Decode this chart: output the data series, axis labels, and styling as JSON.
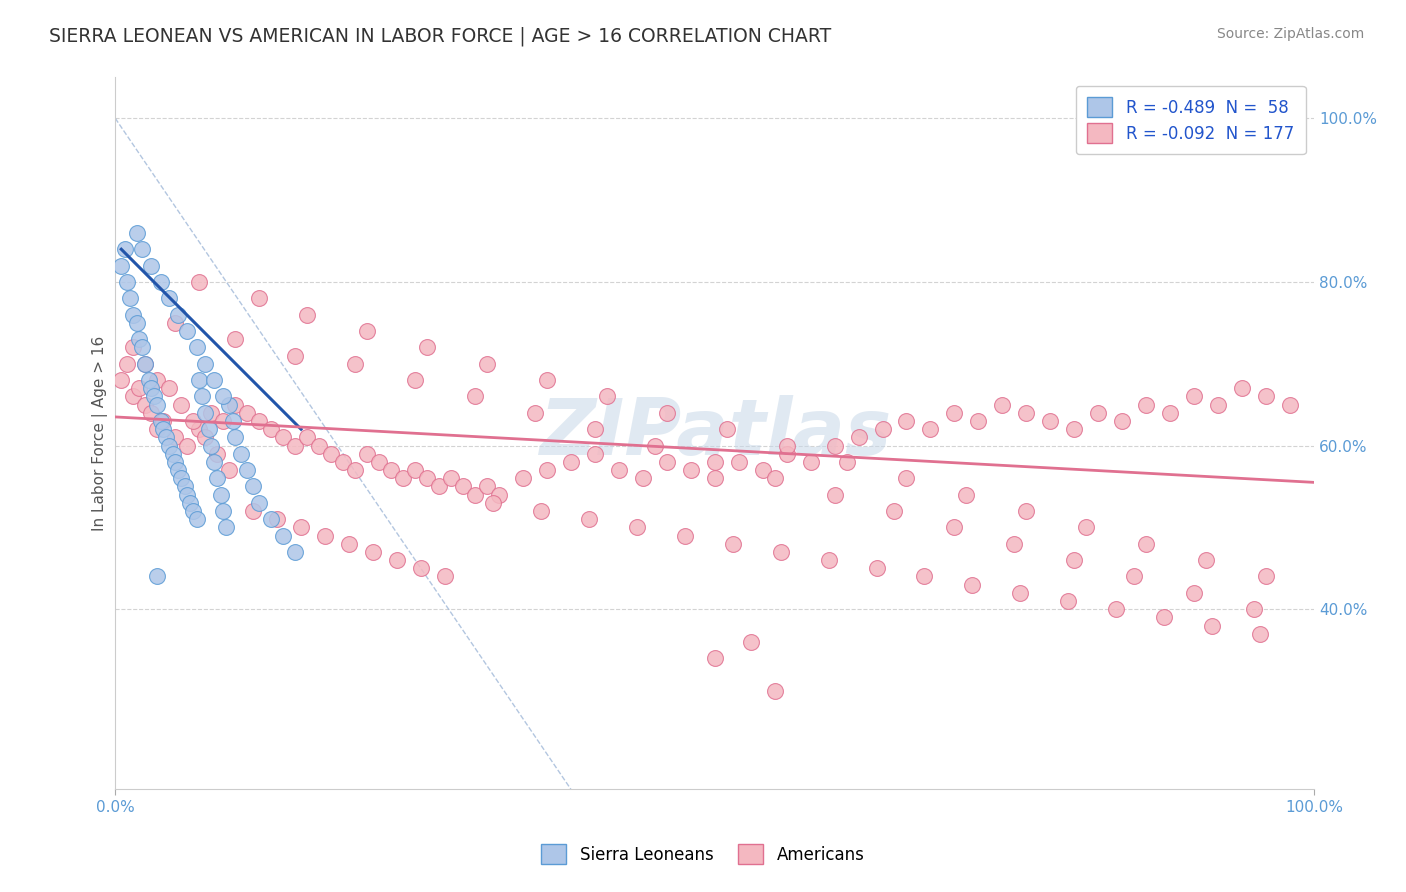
{
  "title": "SIERRA LEONEAN VS AMERICAN IN LABOR FORCE | AGE > 16 CORRELATION CHART",
  "source": "Source: ZipAtlas.com",
  "ylabel": "In Labor Force | Age > 16",
  "xlim": [
    0.0,
    1.0
  ],
  "ylim": [
    0.18,
    1.05
  ],
  "xticks": [
    0.0,
    1.0
  ],
  "yticks": [
    0.4,
    0.6,
    0.8,
    1.0
  ],
  "xtick_labels": [
    "0.0%",
    "100.0%"
  ],
  "ytick_labels": [
    "40.0%",
    "60.0%",
    "80.0%",
    "100.0%"
  ],
  "blue_scatter_color": "#aec6e8",
  "blue_scatter_edge": "#5b9bd5",
  "pink_scatter_color": "#f4b8c1",
  "pink_scatter_edge": "#e07090",
  "blue_line_color": "#2255aa",
  "pink_line_color": "#e07090",
  "diag_line_color": "#a0b8d8",
  "background_color": "#ffffff",
  "grid_color": "#c8c8c8",
  "tick_color": "#5b9bd5",
  "title_color": "#333333",
  "source_color": "#888888",
  "watermark": "ZIPatlas",
  "watermark_color": "#c8d8e8",
  "legend_r_color": "#2255cc",
  "legend_n_color": "#2255cc",
  "scatter_blue_x": [
    0.005,
    0.008,
    0.01,
    0.012,
    0.015,
    0.018,
    0.02,
    0.022,
    0.025,
    0.028,
    0.03,
    0.032,
    0.035,
    0.038,
    0.04,
    0.042,
    0.045,
    0.048,
    0.05,
    0.052,
    0.055,
    0.058,
    0.06,
    0.062,
    0.065,
    0.068,
    0.07,
    0.072,
    0.075,
    0.078,
    0.08,
    0.082,
    0.085,
    0.088,
    0.09,
    0.092,
    0.095,
    0.098,
    0.1,
    0.105,
    0.11,
    0.115,
    0.12,
    0.13,
    0.14,
    0.15,
    0.018,
    0.022,
    0.03,
    0.038,
    0.045,
    0.052,
    0.06,
    0.068,
    0.075,
    0.082,
    0.09,
    0.035
  ],
  "scatter_blue_y": [
    0.82,
    0.84,
    0.8,
    0.78,
    0.76,
    0.75,
    0.73,
    0.72,
    0.7,
    0.68,
    0.67,
    0.66,
    0.65,
    0.63,
    0.62,
    0.61,
    0.6,
    0.59,
    0.58,
    0.57,
    0.56,
    0.55,
    0.54,
    0.53,
    0.52,
    0.51,
    0.68,
    0.66,
    0.64,
    0.62,
    0.6,
    0.58,
    0.56,
    0.54,
    0.52,
    0.5,
    0.65,
    0.63,
    0.61,
    0.59,
    0.57,
    0.55,
    0.53,
    0.51,
    0.49,
    0.47,
    0.86,
    0.84,
    0.82,
    0.8,
    0.78,
    0.76,
    0.74,
    0.72,
    0.7,
    0.68,
    0.66,
    0.44
  ],
  "scatter_pink_x": [
    0.005,
    0.01,
    0.015,
    0.02,
    0.025,
    0.03,
    0.035,
    0.04,
    0.05,
    0.06,
    0.07,
    0.08,
    0.09,
    0.1,
    0.11,
    0.12,
    0.13,
    0.14,
    0.15,
    0.16,
    0.17,
    0.18,
    0.19,
    0.2,
    0.21,
    0.22,
    0.23,
    0.24,
    0.25,
    0.26,
    0.27,
    0.28,
    0.29,
    0.3,
    0.31,
    0.32,
    0.34,
    0.36,
    0.38,
    0.4,
    0.42,
    0.44,
    0.46,
    0.48,
    0.5,
    0.52,
    0.54,
    0.56,
    0.58,
    0.6,
    0.62,
    0.64,
    0.66,
    0.68,
    0.7,
    0.72,
    0.74,
    0.76,
    0.78,
    0.8,
    0.82,
    0.84,
    0.86,
    0.88,
    0.9,
    0.92,
    0.94,
    0.96,
    0.98,
    0.015,
    0.025,
    0.035,
    0.045,
    0.055,
    0.065,
    0.075,
    0.085,
    0.095,
    0.115,
    0.135,
    0.155,
    0.175,
    0.195,
    0.215,
    0.235,
    0.255,
    0.275,
    0.315,
    0.355,
    0.395,
    0.435,
    0.475,
    0.515,
    0.555,
    0.595,
    0.635,
    0.675,
    0.715,
    0.755,
    0.795,
    0.835,
    0.875,
    0.915,
    0.955,
    0.05,
    0.1,
    0.15,
    0.2,
    0.25,
    0.3,
    0.35,
    0.4,
    0.45,
    0.5,
    0.55,
    0.6,
    0.65,
    0.7,
    0.75,
    0.8,
    0.85,
    0.9,
    0.95,
    0.07,
    0.12,
    0.16,
    0.21,
    0.26,
    0.31,
    0.36,
    0.41,
    0.46,
    0.51,
    0.56,
    0.61,
    0.66,
    0.71,
    0.76,
    0.81,
    0.86,
    0.91,
    0.96,
    0.5,
    0.53,
    0.55
  ],
  "scatter_pink_y": [
    0.68,
    0.7,
    0.66,
    0.67,
    0.65,
    0.64,
    0.62,
    0.63,
    0.61,
    0.6,
    0.62,
    0.64,
    0.63,
    0.65,
    0.64,
    0.63,
    0.62,
    0.61,
    0.6,
    0.61,
    0.6,
    0.59,
    0.58,
    0.57,
    0.59,
    0.58,
    0.57,
    0.56,
    0.57,
    0.56,
    0.55,
    0.56,
    0.55,
    0.54,
    0.55,
    0.54,
    0.56,
    0.57,
    0.58,
    0.59,
    0.57,
    0.56,
    0.58,
    0.57,
    0.56,
    0.58,
    0.57,
    0.59,
    0.58,
    0.6,
    0.61,
    0.62,
    0.63,
    0.62,
    0.64,
    0.63,
    0.65,
    0.64,
    0.63,
    0.62,
    0.64,
    0.63,
    0.65,
    0.64,
    0.66,
    0.65,
    0.67,
    0.66,
    0.65,
    0.72,
    0.7,
    0.68,
    0.67,
    0.65,
    0.63,
    0.61,
    0.59,
    0.57,
    0.52,
    0.51,
    0.5,
    0.49,
    0.48,
    0.47,
    0.46,
    0.45,
    0.44,
    0.53,
    0.52,
    0.51,
    0.5,
    0.49,
    0.48,
    0.47,
    0.46,
    0.45,
    0.44,
    0.43,
    0.42,
    0.41,
    0.4,
    0.39,
    0.38,
    0.37,
    0.75,
    0.73,
    0.71,
    0.7,
    0.68,
    0.66,
    0.64,
    0.62,
    0.6,
    0.58,
    0.56,
    0.54,
    0.52,
    0.5,
    0.48,
    0.46,
    0.44,
    0.42,
    0.4,
    0.8,
    0.78,
    0.76,
    0.74,
    0.72,
    0.7,
    0.68,
    0.66,
    0.64,
    0.62,
    0.6,
    0.58,
    0.56,
    0.54,
    0.52,
    0.5,
    0.48,
    0.46,
    0.44,
    0.34,
    0.36,
    0.3
  ],
  "blue_trend_x": [
    0.005,
    0.155
  ],
  "blue_trend_y": [
    0.84,
    0.62
  ],
  "pink_trend_x": [
    0.0,
    1.0
  ],
  "pink_trend_y": [
    0.635,
    0.555
  ]
}
